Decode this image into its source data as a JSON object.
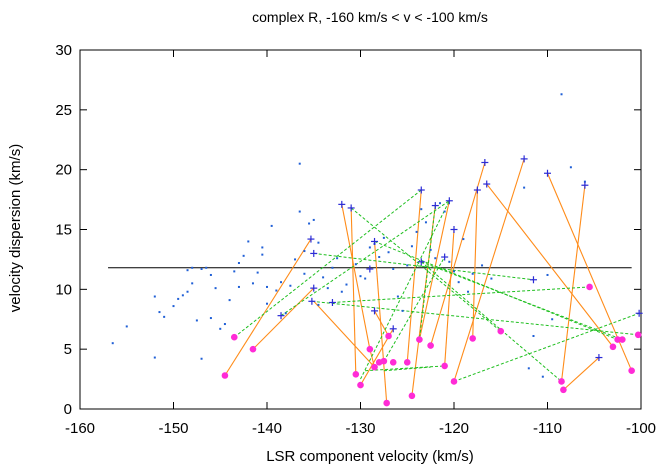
{
  "chart_data": {
    "type": "scatter",
    "title": "complex R,  -160 km/s < v < -100 km/s",
    "xlabel": "LSR component velocity (km/s)",
    "ylabel": "velocity dispersion (km/s)",
    "xlim": [
      -160,
      -100
    ],
    "ylim": [
      0,
      30
    ],
    "xticks": [
      -160,
      -150,
      -140,
      -130,
      -120,
      -110,
      -100
    ],
    "yticks": [
      0,
      5,
      10,
      15,
      20,
      25,
      30
    ],
    "grid": false,
    "legend": "none",
    "colors": {
      "points": "#1f5fd6",
      "crosses": "#2b2bd6",
      "circles": "#ff2bd6",
      "pair_lines": "#ff8c1a",
      "dashed_lines": "#1fbf1f",
      "reference_line": "#000000"
    },
    "reference_line_y": 11.8,
    "points": [
      [
        -156.5,
        5.5
      ],
      [
        -155,
        6.9
      ],
      [
        -152,
        4.3
      ],
      [
        -152,
        9.4
      ],
      [
        -151.5,
        8.1
      ],
      [
        -151,
        7.7
      ],
      [
        -150,
        8.6
      ],
      [
        -149.5,
        9.2
      ],
      [
        -149,
        9.5
      ],
      [
        -148.5,
        9.8
      ],
      [
        -148.5,
        11.6
      ],
      [
        -148,
        11.8
      ],
      [
        -148,
        10.5
      ],
      [
        -147.5,
        7.4
      ],
      [
        -147,
        11.7
      ],
      [
        -147,
        4.2
      ],
      [
        -146.5,
        11.8
      ],
      [
        -146,
        7.6
      ],
      [
        -146,
        11.2
      ],
      [
        -145.5,
        10.1
      ],
      [
        -145,
        6.7
      ],
      [
        -144.5,
        7.1
      ],
      [
        -144,
        9.1
      ],
      [
        -143.5,
        11.5
      ],
      [
        -143,
        12.2
      ],
      [
        -143,
        10.2
      ],
      [
        -142.5,
        12.8
      ],
      [
        -142,
        14.0
      ],
      [
        -141.5,
        10.5
      ],
      [
        -141,
        11.4
      ],
      [
        -140.5,
        13.5
      ],
      [
        -140.5,
        12.9
      ],
      [
        -140,
        8.8
      ],
      [
        -140,
        10.2
      ],
      [
        -139.5,
        15.3
      ],
      [
        -139,
        9.9
      ],
      [
        -138.5,
        10.6
      ],
      [
        -138,
        8.0
      ],
      [
        -137.5,
        10.3
      ],
      [
        -137,
        12.5
      ],
      [
        -136.5,
        20.5
      ],
      [
        -136.5,
        16.5
      ],
      [
        -136,
        13.2
      ],
      [
        -136,
        11.3
      ],
      [
        -135.5,
        15.5
      ],
      [
        -135,
        15.8
      ],
      [
        -134.5,
        13.9
      ],
      [
        -134.5,
        8.7
      ],
      [
        -134,
        11.0
      ],
      [
        -133.5,
        10.1
      ],
      [
        -133,
        11.8
      ],
      [
        -132.5,
        12.6
      ],
      [
        -132,
        9.8
      ],
      [
        -131.5,
        10.4
      ],
      [
        -130.5,
        12.1
      ],
      [
        -130,
        11.1
      ],
      [
        -129.5,
        10.9
      ],
      [
        -129,
        13.5
      ],
      [
        -128.5,
        13.8
      ],
      [
        -128,
        12.7
      ],
      [
        -127.5,
        14.3
      ],
      [
        -127,
        13.1
      ],
      [
        -126.5,
        11.7
      ],
      [
        -126,
        9.4
      ],
      [
        -125.5,
        8.2
      ],
      [
        -125,
        12.0
      ],
      [
        -124.5,
        13.6
      ],
      [
        -124,
        14.8
      ],
      [
        -123.5,
        16.7
      ],
      [
        -123,
        15.6
      ],
      [
        -122.5,
        13.3
      ],
      [
        -122,
        12.6
      ],
      [
        -121.5,
        17.2
      ],
      [
        -121,
        16.5
      ],
      [
        -120.5,
        12.3
      ],
      [
        -120,
        11.5
      ],
      [
        -119.5,
        10.6
      ],
      [
        -119,
        14.2
      ],
      [
        -118.5,
        9.8
      ],
      [
        -118,
        11.3
      ],
      [
        -117,
        12.0
      ],
      [
        -116,
        10.9
      ],
      [
        -112.5,
        18.5
      ],
      [
        -110,
        11.2
      ],
      [
        -108.5,
        26.3
      ],
      [
        -107.5,
        20.2
      ],
      [
        -106,
        19.0
      ],
      [
        -111.5,
        6.1
      ],
      [
        -109.5,
        7.5
      ],
      [
        -112,
        3.4
      ],
      [
        -110.5,
        2.7
      ]
    ],
    "crosses": [
      [
        -135.3,
        14.2
      ],
      [
        -135,
        13.0
      ],
      [
        -135,
        10.1
      ],
      [
        -135.2,
        9.0
      ],
      [
        -138.5,
        7.8
      ],
      [
        -133,
        8.9
      ],
      [
        -132,
        17.1
      ],
      [
        -131,
        16.8
      ],
      [
        -129,
        11.7
      ],
      [
        -128.5,
        14.0
      ],
      [
        -128.5,
        8.2
      ],
      [
        -126.5,
        6.7
      ],
      [
        -123.5,
        12.3
      ],
      [
        -123.5,
        18.3
      ],
      [
        -122,
        17.0
      ],
      [
        -121,
        12.7
      ],
      [
        -120.5,
        17.4
      ],
      [
        -120,
        15.0
      ],
      [
        -117.5,
        18.3
      ],
      [
        -116.7,
        20.6
      ],
      [
        -116.5,
        18.8
      ],
      [
        -112.5,
        20.9
      ],
      [
        -110,
        19.7
      ],
      [
        -106,
        18.7
      ],
      [
        -111.5,
        10.8
      ],
      [
        -104.5,
        4.3
      ],
      [
        -100.2,
        8.0
      ]
    ],
    "circles": [
      [
        -144.5,
        2.8
      ],
      [
        -143.5,
        6.0
      ],
      [
        -141.5,
        5.0
      ],
      [
        -130.5,
        2.9
      ],
      [
        -130,
        2.0
      ],
      [
        -129,
        5.0
      ],
      [
        -128.5,
        3.5
      ],
      [
        -128,
        3.9
      ],
      [
        -127.5,
        4.0
      ],
      [
        -127.2,
        0.5
      ],
      [
        -127,
        6.1
      ],
      [
        -126.5,
        3.9
      ],
      [
        -125,
        3.9
      ],
      [
        -124.5,
        1.1
      ],
      [
        -123.7,
        5.8
      ],
      [
        -122.5,
        5.3
      ],
      [
        -121,
        3.6
      ],
      [
        -120,
        2.3
      ],
      [
        -118,
        5.9
      ],
      [
        -115,
        6.5
      ],
      [
        -108.5,
        2.3
      ],
      [
        -108.3,
        1.6
      ],
      [
        -105.5,
        10.2
      ],
      [
        -103,
        5.2
      ],
      [
        -102.5,
        5.8
      ],
      [
        -102,
        5.8
      ],
      [
        -101,
        3.2
      ],
      [
        -100.3,
        6.2
      ]
    ],
    "pair_lines": [
      [
        [
          -144.5,
          2.8
        ],
        [
          -135.3,
          14.2
        ]
      ],
      [
        [
          -141.5,
          5.0
        ],
        [
          -135,
          10.1
        ]
      ],
      [
        [
          -128.5,
          3.5
        ],
        [
          -135,
          9.0
        ]
      ],
      [
        [
          -129,
          5.0
        ],
        [
          -132,
          17.1
        ]
      ],
      [
        [
          -130.5,
          2.9
        ],
        [
          -131,
          16.8
        ]
      ],
      [
        [
          -127.2,
          0.5
        ],
        [
          -128.5,
          14.0
        ]
      ],
      [
        [
          -127,
          6.1
        ],
        [
          -128.5,
          8.2
        ]
      ],
      [
        [
          -130,
          2.0
        ],
        [
          -126.5,
          6.7
        ]
      ],
      [
        [
          -125,
          3.9
        ],
        [
          -123.5,
          18.3
        ]
      ],
      [
        [
          -124.5,
          1.1
        ],
        [
          -122,
          17.0
        ]
      ],
      [
        [
          -123.7,
          5.8
        ],
        [
          -120.5,
          17.4
        ]
      ],
      [
        [
          -121,
          3.6
        ],
        [
          -120,
          15.0
        ]
      ],
      [
        [
          -122.5,
          5.3
        ],
        [
          -116.7,
          20.6
        ]
      ],
      [
        [
          -120,
          2.3
        ],
        [
          -112.5,
          20.9
        ]
      ],
      [
        [
          -118,
          5.9
        ],
        [
          -117.5,
          18.3
        ]
      ],
      [
        [
          -108.5,
          2.3
        ],
        [
          -106,
          18.7
        ]
      ],
      [
        [
          -103,
          5.2
        ],
        [
          -116.5,
          18.8
        ]
      ],
      [
        [
          -108.3,
          1.6
        ],
        [
          -104.5,
          4.3
        ]
      ],
      [
        [
          -101,
          3.2
        ],
        [
          -110,
          19.7
        ]
      ],
      [
        [
          -129,
          5.0
        ],
        [
          -128.5,
          3.5
        ]
      ]
    ],
    "dashed_lines": [
      [
        [
          -143.5,
          6.0
        ],
        [
          -123.5,
          18.3
        ]
      ],
      [
        [
          -138.5,
          7.8
        ],
        [
          -120.5,
          17.4
        ]
      ],
      [
        [
          -135,
          13.0
        ],
        [
          -111.5,
          10.8
        ]
      ],
      [
        [
          -135.2,
          9.0
        ],
        [
          -100.3,
          6.2
        ]
      ],
      [
        [
          -131,
          16.8
        ],
        [
          -115,
          6.5
        ]
      ],
      [
        [
          -133,
          8.9
        ],
        [
          -105.5,
          10.2
        ]
      ],
      [
        [
          -128.5,
          14.0
        ],
        [
          -102.5,
          5.8
        ]
      ],
      [
        [
          -127.5,
          4.0
        ],
        [
          -121,
          12.7
        ]
      ],
      [
        [
          -123.5,
          12.3
        ],
        [
          -102,
          5.8
        ]
      ],
      [
        [
          -123.5,
          12.3
        ],
        [
          -108.5,
          2.3
        ]
      ],
      [
        [
          -129.5,
          3.2
        ],
        [
          -121,
          3.6
        ]
      ],
      [
        [
          -130,
          2.5
        ],
        [
          -120.5,
          17.4
        ]
      ],
      [
        [
          -120,
          2.3
        ],
        [
          -100.2,
          8.0
        ]
      ],
      [
        [
          -127.5,
          3.2
        ],
        [
          -122.5,
          3.5
        ]
      ],
      [
        [
          -122,
          17.0
        ],
        [
          -123.7,
          5.8
        ]
      ]
    ]
  }
}
